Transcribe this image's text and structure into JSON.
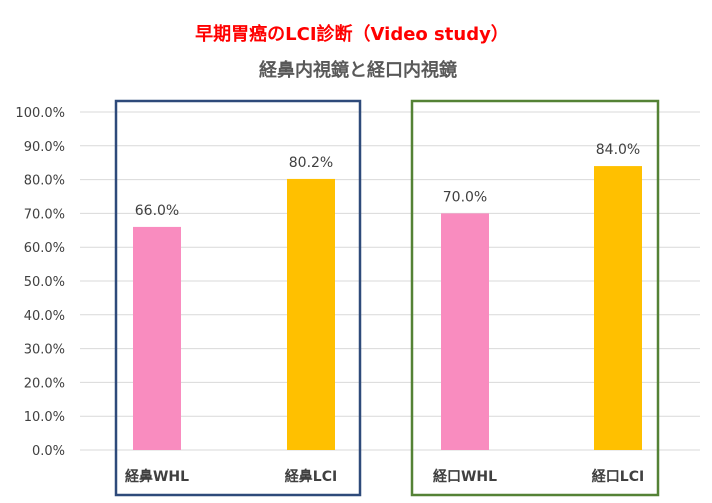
{
  "chart_data": {
    "type": "bar",
    "title": "早期胃癌のLCI診断（Video study）",
    "subtitle": "経鼻内視鏡と経口内視鏡",
    "categories": [
      "経鼻WHL",
      "経鼻LCI",
      "経口WHL",
      "経口LCI"
    ],
    "values": [
      66.0,
      80.2,
      70.0,
      84.0
    ],
    "value_labels": [
      "66.0%",
      "80.2%",
      "70.0%",
      "84.0%"
    ],
    "ylim": [
      0,
      100
    ],
    "y_ticks": [
      "0.0%",
      "10.0%",
      "20.0%",
      "30.0%",
      "40.0%",
      "50.0%",
      "60.0%",
      "70.0%",
      "80.0%",
      "90.0%",
      "100.0%"
    ],
    "grid": true,
    "xlabel": "",
    "ylabel": "",
    "colors": {
      "title": "#ff0000",
      "subtitle": "#595959",
      "bars": [
        "#f98cbf",
        "#ffc000",
        "#f98cbf",
        "#ffc000"
      ],
      "group_box_1": "#2e4a7a",
      "group_box_2": "#548235",
      "grid": "#d9d9d9",
      "text": "#404040"
    }
  }
}
